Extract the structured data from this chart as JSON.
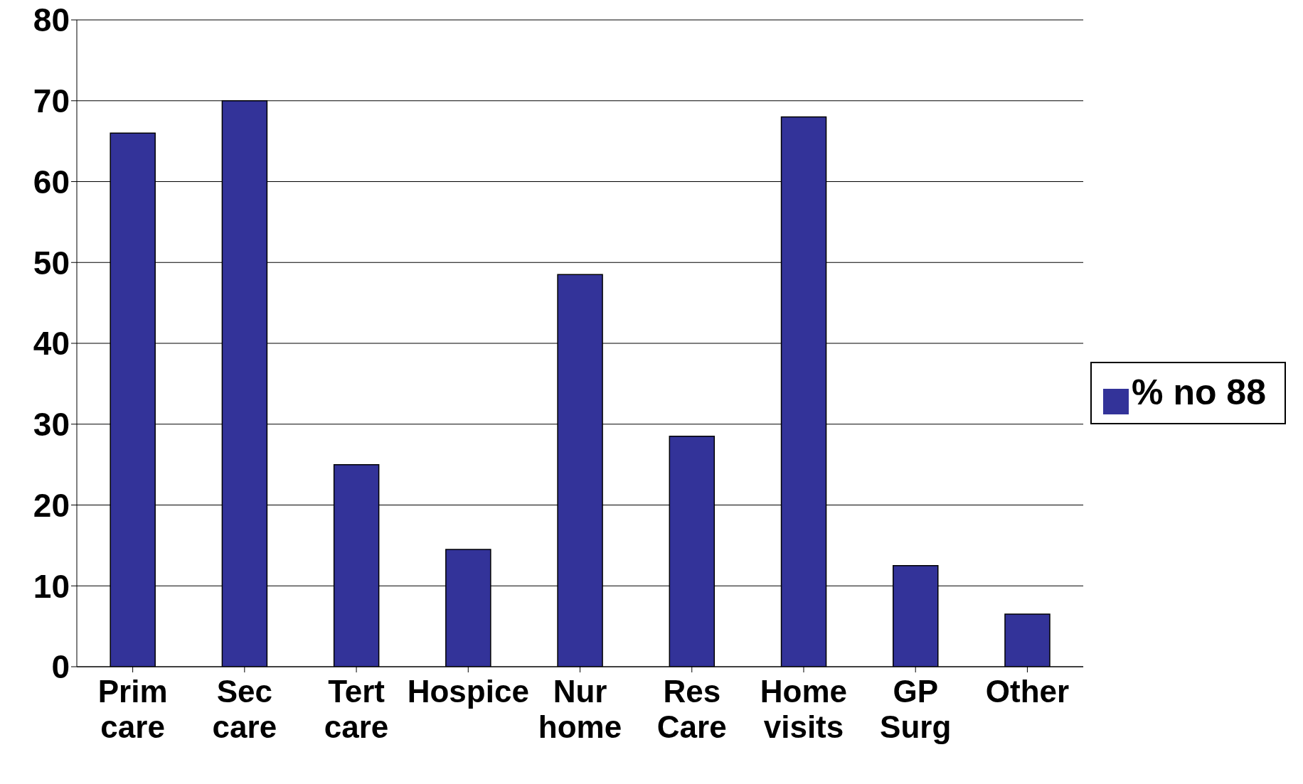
{
  "chart_data": {
    "type": "bar",
    "categories": [
      "Prim care",
      "Sec care",
      "Tert care",
      "Hospice",
      "Nur home",
      "Res Care",
      "Home visits",
      "GP Surg",
      "Other"
    ],
    "series": [
      {
        "name": "% no 88",
        "color": "#333399",
        "values": [
          66,
          70,
          25,
          14.5,
          48.5,
          28.5,
          68,
          12.5,
          6.5
        ]
      }
    ],
    "ylim": [
      0,
      80
    ],
    "yticks": [
      0,
      10,
      20,
      30,
      40,
      50,
      60,
      70,
      80
    ],
    "grid": "y",
    "legend": "right"
  }
}
